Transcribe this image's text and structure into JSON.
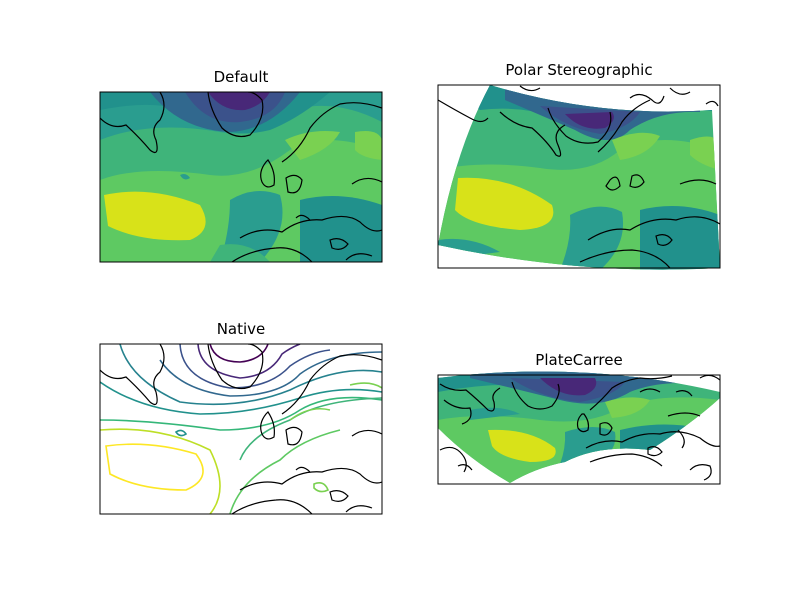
{
  "figure": {
    "panels": [
      {
        "id": "default",
        "title": "Default",
        "style": "filled"
      },
      {
        "id": "polar",
        "title": "Polar Stereographic",
        "style": "filled"
      },
      {
        "id": "native",
        "title": "Native",
        "style": "contour-lines"
      },
      {
        "id": "platecarree",
        "title": "PlateCarree",
        "style": "filled"
      }
    ],
    "colormap": [
      "#440154",
      "#3b528b",
      "#21918c",
      "#2a9d8f",
      "#5ec962",
      "#7ad151",
      "#bddf26",
      "#d8e219"
    ],
    "coastline_color": "#000000"
  }
}
